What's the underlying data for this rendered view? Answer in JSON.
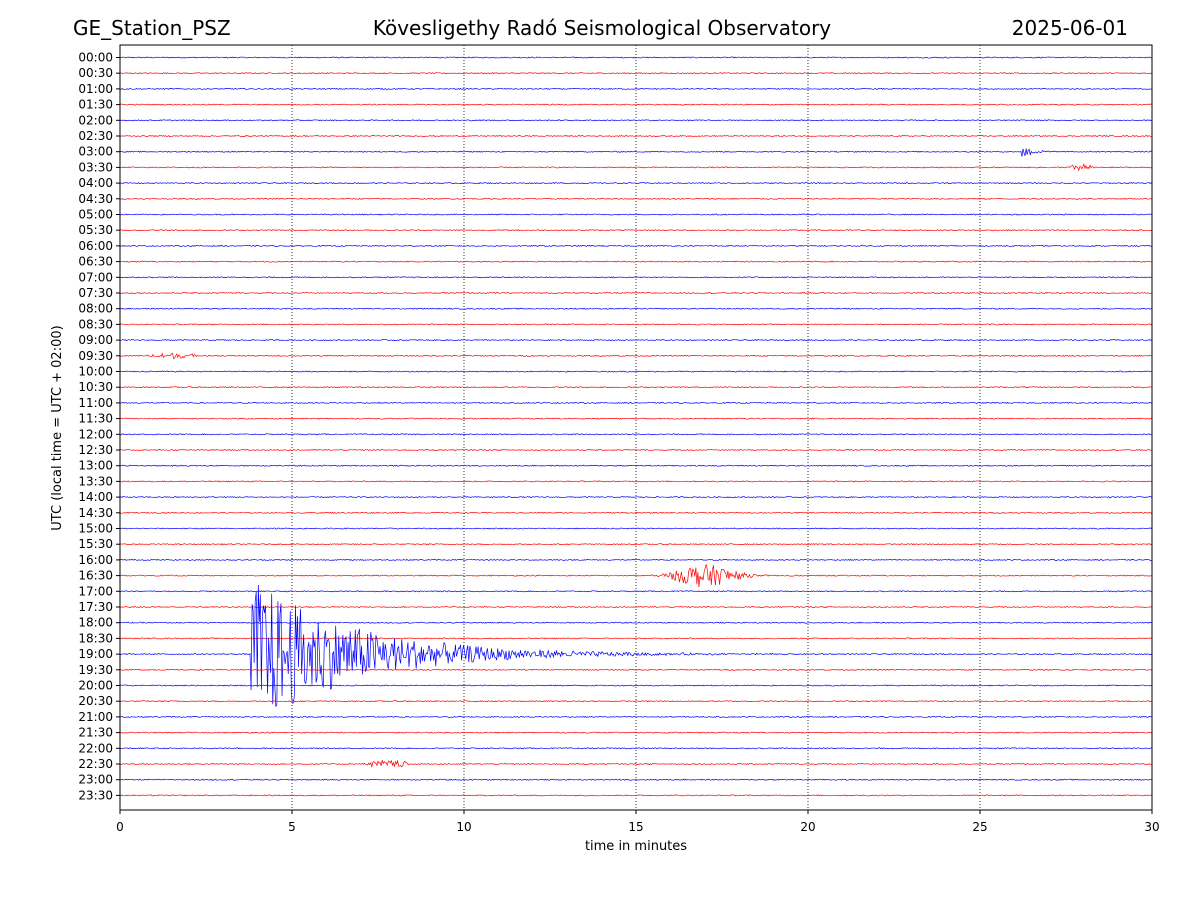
{
  "header": {
    "station": "GE_Station_PSZ",
    "observatory": "Kövesligethy Radó Seismological Observatory",
    "date": "2025-06-01"
  },
  "chart_data": {
    "type": "line",
    "xlabel": "time in minutes",
    "ylabel": "UTC (local time = UTC + 02:00)",
    "xlim": [
      0,
      30
    ],
    "xticks": [
      "0",
      "5",
      "10",
      "15",
      "20",
      "25",
      "30"
    ],
    "grid": "vertical dotted lines at each x tick",
    "trace_colors": [
      "#0000ff",
      "#ff0000"
    ],
    "rows": [
      "00:00",
      "00:30",
      "01:00",
      "01:30",
      "02:00",
      "02:30",
      "03:00",
      "03:30",
      "04:00",
      "04:30",
      "05:00",
      "05:30",
      "06:00",
      "06:30",
      "07:00",
      "07:30",
      "08:00",
      "08:30",
      "09:00",
      "09:30",
      "10:00",
      "10:30",
      "11:00",
      "11:30",
      "12:00",
      "12:30",
      "13:00",
      "13:30",
      "14:00",
      "14:30",
      "15:00",
      "15:30",
      "16:00",
      "16:30",
      "17:00",
      "17:30",
      "18:00",
      "18:30",
      "19:00",
      "19:30",
      "20:00",
      "20:30",
      "21:00",
      "21:30",
      "22:00",
      "22:30",
      "23:00",
      "23:30"
    ],
    "events": [
      {
        "row": "03:00",
        "start_min": 26.2,
        "end_min": 28.0,
        "peak_amplitude": 0.5,
        "decay": "fast"
      },
      {
        "row": "03:30",
        "start_min": 27.5,
        "end_min": 28.4,
        "peak_amplitude": 0.22,
        "decay": "slow"
      },
      {
        "row": "09:30",
        "start_min": 0.6,
        "end_min": 2.5,
        "peak_amplitude": 0.18,
        "decay": "slow"
      },
      {
        "row": "16:30",
        "start_min": 15.4,
        "end_min": 19.6,
        "peak_amplitude": 0.75,
        "decay": "spindle"
      },
      {
        "row": "19:00",
        "start_min": 3.8,
        "end_min": 21.0,
        "peak_amplitude": 5.0,
        "decay": "fast"
      },
      {
        "row": "22:30",
        "start_min": 7.0,
        "end_min": 8.6,
        "peak_amplitude": 0.25,
        "decay": "slow"
      }
    ]
  }
}
